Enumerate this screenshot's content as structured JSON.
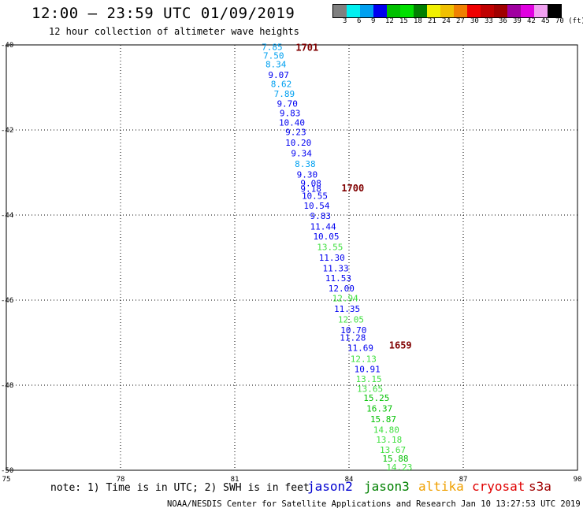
{
  "header": {
    "title": "12:00 – 23:59 UTC 01/09/2019",
    "subtitle": "12 hour collection of altimeter wave heights"
  },
  "colorbar": {
    "colors": [
      "#808080",
      "#00f0f0",
      "#00a0f0",
      "#0000f0",
      "#00c000",
      "#00e000",
      "#008000",
      "#f0f000",
      "#f0c000",
      "#f08000",
      "#f00000",
      "#c00000",
      "#a00000",
      "#a000a0",
      "#e000e0",
      "#f0a0f0",
      "#000000"
    ],
    "labels": [
      "3",
      "6",
      "9",
      "12",
      "15",
      "18",
      "21",
      "24",
      "27",
      "30",
      "33",
      "36",
      "39",
      "42",
      "45",
      "70 (ft)"
    ]
  },
  "map": {
    "lon_ticks": [
      "75",
      "78",
      "81",
      "84",
      "87",
      "90"
    ],
    "lat_ticks": [
      "-40",
      "-42",
      "-44",
      "-46",
      "-48",
      "-50"
    ],
    "times": [
      {
        "label": "1701",
        "lat": -40.05,
        "lon": 82.6
      },
      {
        "label": "1700",
        "lat": -43.35,
        "lon": 83.8
      },
      {
        "label": "1659",
        "lat": -47.05,
        "lon": 85.05
      }
    ],
    "points": [
      {
        "v": "7.85",
        "lat": -40.05,
        "lon": 81.98,
        "c": "#00a0f0"
      },
      {
        "v": "7.50",
        "lat": -40.25,
        "lon": 82.02,
        "c": "#00a0f0"
      },
      {
        "v": "8.34",
        "lat": -40.45,
        "lon": 82.08,
        "c": "#00a0f0"
      },
      {
        "v": "9.07",
        "lat": -40.7,
        "lon": 82.15,
        "c": "#0000f0"
      },
      {
        "v": "8.62",
        "lat": -40.92,
        "lon": 82.22,
        "c": "#00a0f0"
      },
      {
        "v": "7.89",
        "lat": -41.15,
        "lon": 82.3,
        "c": "#00a0f0"
      },
      {
        "v": "9.70",
        "lat": -41.38,
        "lon": 82.38,
        "c": "#0000f0"
      },
      {
        "v": "9.83",
        "lat": -41.6,
        "lon": 82.45,
        "c": "#0000f0"
      },
      {
        "v": "10.40",
        "lat": -41.82,
        "lon": 82.5,
        "c": "#0000f0"
      },
      {
        "v": "9.23",
        "lat": -42.05,
        "lon": 82.6,
        "c": "#0000f0"
      },
      {
        "v": "10.20",
        "lat": -42.3,
        "lon": 82.67,
        "c": "#0000f0"
      },
      {
        "v": "9.34",
        "lat": -42.55,
        "lon": 82.75,
        "c": "#0000f0"
      },
      {
        "v": "8.38",
        "lat": -42.8,
        "lon": 82.85,
        "c": "#00a0f0"
      },
      {
        "v": "9.30",
        "lat": -43.05,
        "lon": 82.9,
        "c": "#0000f0"
      },
      {
        "v": "9.08",
        "lat": -43.25,
        "lon": 83.0,
        "c": "#0000f0"
      },
      {
        "v": "9.18",
        "lat": -43.38,
        "lon": 83.0,
        "c": "#0000f0"
      },
      {
        "v": "10.55",
        "lat": -43.55,
        "lon": 83.1,
        "c": "#0000f0"
      },
      {
        "v": "10.54",
        "lat": -43.78,
        "lon": 83.15,
        "c": "#0000f0"
      },
      {
        "v": "9.83",
        "lat": -44.02,
        "lon": 83.25,
        "c": "#0000f0"
      },
      {
        "v": "11.44",
        "lat": -44.27,
        "lon": 83.32,
        "c": "#0000f0"
      },
      {
        "v": "10.05",
        "lat": -44.5,
        "lon": 83.4,
        "c": "#0000f0"
      },
      {
        "v": "13.55",
        "lat": -44.75,
        "lon": 83.5,
        "c": "#40e040"
      },
      {
        "v": "11.30",
        "lat": -45.0,
        "lon": 83.55,
        "c": "#0000f0"
      },
      {
        "v": "11.33",
        "lat": -45.25,
        "lon": 83.65,
        "c": "#0000f0"
      },
      {
        "v": "11.53",
        "lat": -45.48,
        "lon": 83.72,
        "c": "#0000f0"
      },
      {
        "v": "12.00",
        "lat": -45.72,
        "lon": 83.8,
        "c": "#0000f0"
      },
      {
        "v": "12.94",
        "lat": -45.95,
        "lon": 83.9,
        "c": "#40e040"
      },
      {
        "v": "11.35",
        "lat": -46.2,
        "lon": 83.95,
        "c": "#0000f0"
      },
      {
        "v": "12.05",
        "lat": -46.45,
        "lon": 84.05,
        "c": "#40e040"
      },
      {
        "v": "10.70",
        "lat": -46.7,
        "lon": 84.12,
        "c": "#0000f0"
      },
      {
        "v": "11.28",
        "lat": -46.88,
        "lon": 84.1,
        "c": "#0000f0"
      },
      {
        "v": "11.69",
        "lat": -47.12,
        "lon": 84.3,
        "c": "#0000f0"
      },
      {
        "v": "12.13",
        "lat": -47.38,
        "lon": 84.38,
        "c": "#40e040"
      },
      {
        "v": "10.91",
        "lat": -47.62,
        "lon": 84.48,
        "c": "#0000f0"
      },
      {
        "v": "13.15",
        "lat": -47.85,
        "lon": 84.52,
        "c": "#40e040"
      },
      {
        "v": "13.65",
        "lat": -48.08,
        "lon": 84.55,
        "c": "#40e040"
      },
      {
        "v": "15.25",
        "lat": -48.3,
        "lon": 84.72,
        "c": "#00c000"
      },
      {
        "v": "16.37",
        "lat": -48.55,
        "lon": 84.8,
        "c": "#00c000"
      },
      {
        "v": "15.87",
        "lat": -48.8,
        "lon": 84.9,
        "c": "#00c000"
      },
      {
        "v": "14.80",
        "lat": -49.05,
        "lon": 84.98,
        "c": "#40e040"
      },
      {
        "v": "13.18",
        "lat": -49.28,
        "lon": 85.05,
        "c": "#40e040"
      },
      {
        "v": "13.67",
        "lat": -49.52,
        "lon": 85.15,
        "c": "#40e040"
      },
      {
        "v": "15.88",
        "lat": -49.72,
        "lon": 85.22,
        "c": "#00c000"
      },
      {
        "v": "14.23",
        "lat": -49.93,
        "lon": 85.32,
        "c": "#40e040"
      }
    ]
  },
  "note": "note: 1) Time is in UTC; 2) SWH is in feet",
  "legend": [
    {
      "name": "jason2",
      "color": "#0000d0"
    },
    {
      "name": "jason3",
      "color": "#008000"
    },
    {
      "name": "altika",
      "color": "#f0a000"
    },
    {
      "name": "cryosat",
      "color": "#e00000"
    },
    {
      "name": "s3a",
      "color": "#a00000"
    }
  ],
  "footer": "NOAA/NESDIS Center for Satellite Applications and Research   Jan 10 13:27:53 UTC 2019"
}
